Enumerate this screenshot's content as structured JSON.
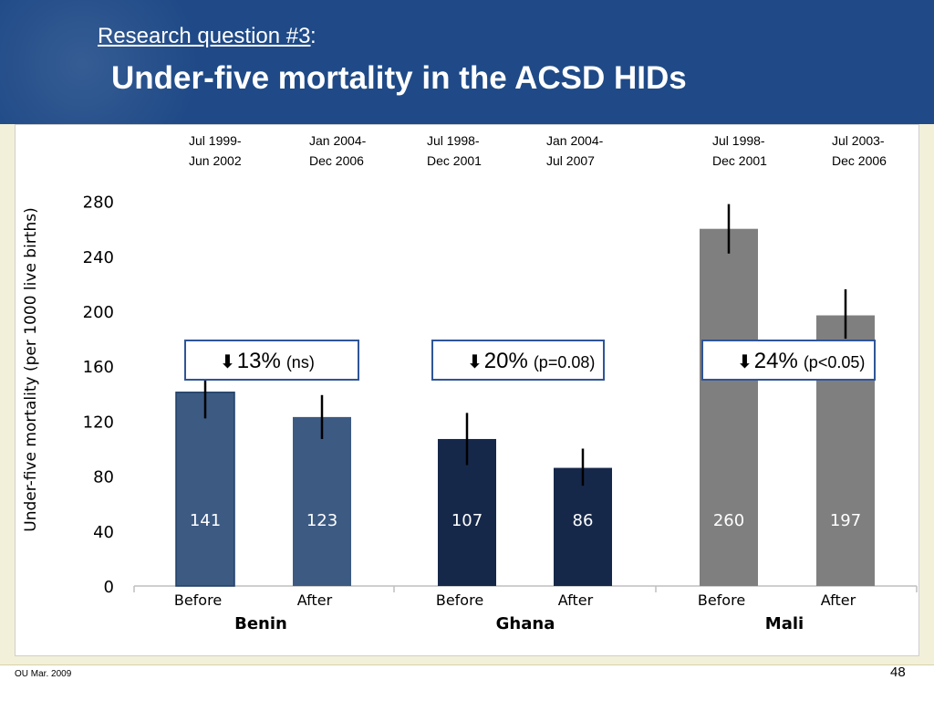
{
  "header": {
    "subtitle": "Research question #3",
    "subtitle_suffix": ":",
    "title": "Under-five mortality in the ACSD HIDs"
  },
  "footer": {
    "left": "OU Mar. 2009",
    "page_number": "48"
  },
  "colors": {
    "header_bg": "#1f4a87",
    "benin": "#3c5a82",
    "ghana": "#16284a",
    "mali": "#7f7f7f",
    "annotation_border": "#2f5597"
  },
  "chart_data": {
    "type": "bar",
    "ylabel": "Under-five mortality  (per 1000 live births)",
    "ylim": [
      0,
      280
    ],
    "yticks": [
      0,
      40,
      80,
      120,
      160,
      200,
      240,
      280
    ],
    "grid": false,
    "groups": [
      {
        "country": "Benin",
        "color": "#3c5a82",
        "annotation": {
          "arrow": "🡇",
          "pct": "13%",
          "detail": "(ns)"
        },
        "bars": [
          {
            "category": "Before",
            "period": [
              "Jul 1999-",
              "Jun 2002"
            ],
            "value": 141,
            "err_low": 122,
            "err_high": 152
          },
          {
            "category": "After",
            "period": [
              "Jan 2004-",
              "Dec 2006"
            ],
            "value": 123,
            "err_low": 107,
            "err_high": 139
          }
        ]
      },
      {
        "country": "Ghana",
        "color": "#16284a",
        "annotation": {
          "arrow": "🡇",
          "pct": "20%",
          "detail": "(p=0.08)"
        },
        "bars": [
          {
            "category": "Before",
            "period": [
              "Jul 1998-",
              "Dec 2001"
            ],
            "value": 107,
            "err_low": 88,
            "err_high": 126
          },
          {
            "category": "After",
            "period": [
              "Jan 2004-",
              "Jul 2007"
            ],
            "value": 86,
            "err_low": 73,
            "err_high": 100
          }
        ]
      },
      {
        "country": "Mali",
        "color": "#7f7f7f",
        "annotation": {
          "arrow": "🡇",
          "pct": "24%",
          "detail": "(p<0.05)"
        },
        "bars": [
          {
            "category": "Before",
            "period": [
              "Jul 1998-",
              "Dec 2001"
            ],
            "value": 260,
            "err_low": 242,
            "err_high": 278
          },
          {
            "category": "After",
            "period": [
              "Jul 2003-",
              "Dec 2006"
            ],
            "value": 197,
            "err_low": 180,
            "err_high": 216
          }
        ]
      }
    ]
  }
}
